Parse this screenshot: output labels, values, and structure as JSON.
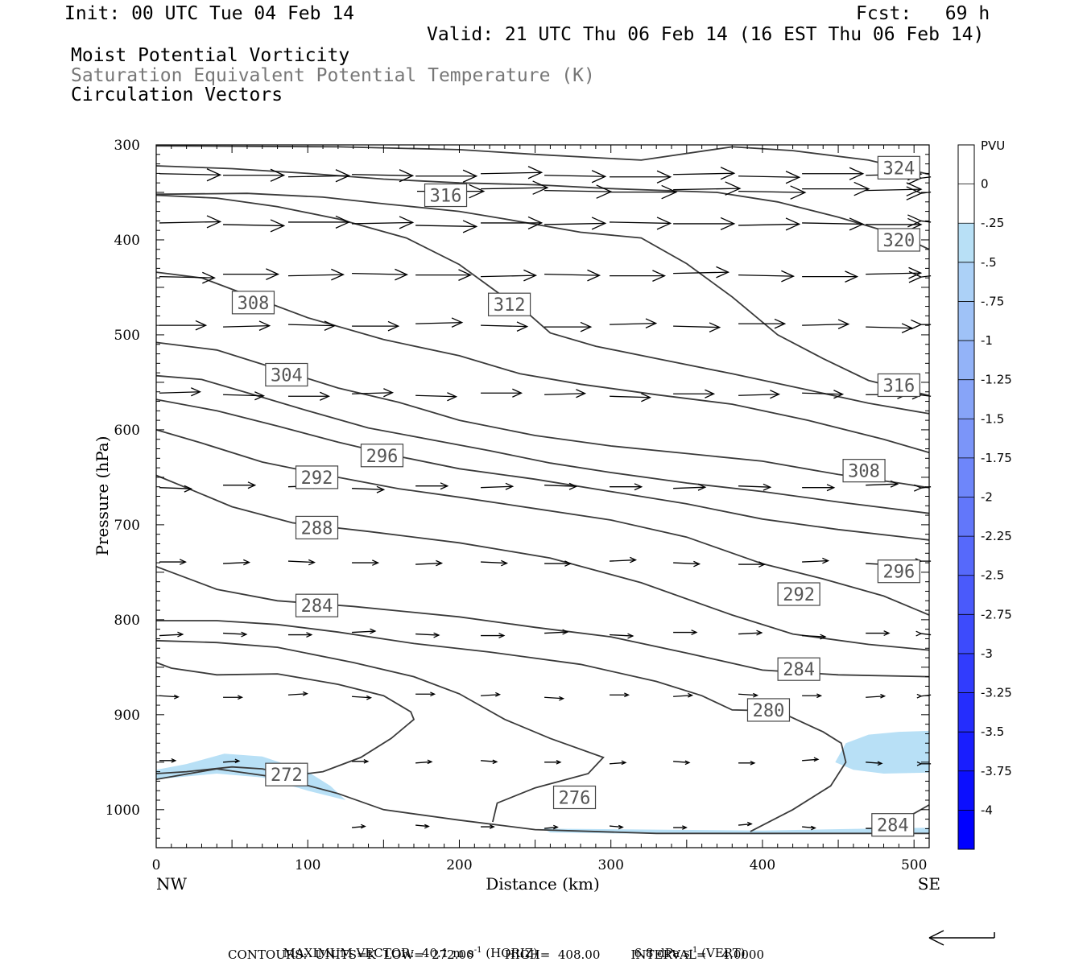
{
  "header": {
    "init": "Init: 00 UTC Tue 04 Feb 14",
    "fcst": "Fcst:   69 h",
    "valid": "Valid: 21 UTC Thu 06 Feb 14 (16 EST Thu 06 Feb 14)",
    "title1": "Moist Potential Vorticity",
    "title2": "Saturation Equivalent Potential Temperature (K)",
    "title3": "Circulation Vectors"
  },
  "chart_data": {
    "type": "cross-section",
    "xlabel": "Distance (km)",
    "ylabel": "Pressure (hPa)",
    "xlim": [
      0,
      510
    ],
    "ylim": [
      1040,
      300
    ],
    "x_ticks": [
      "0",
      "100",
      "200",
      "300",
      "400",
      "500"
    ],
    "y_ticks": [
      "300",
      "400",
      "500",
      "600",
      "700",
      "800",
      "900",
      "1000"
    ],
    "x_end_labels": {
      "left": "NW",
      "right": "SE"
    },
    "contour_labels": [
      {
        "text": "324",
        "x": 490,
        "p": 324
      },
      {
        "text": "316",
        "x": 191,
        "p": 353
      },
      {
        "text": "320",
        "x": 490,
        "p": 400
      },
      {
        "text": "308",
        "x": 64,
        "p": 466
      },
      {
        "text": "312",
        "x": 233,
        "p": 468
      },
      {
        "text": "316",
        "x": 490,
        "p": 553
      },
      {
        "text": "304",
        "x": 86,
        "p": 542
      },
      {
        "text": "296",
        "x": 149,
        "p": 627
      },
      {
        "text": "308",
        "x": 467,
        "p": 643
      },
      {
        "text": "292",
        "x": 106,
        "p": 650
      },
      {
        "text": "288",
        "x": 106,
        "p": 703
      },
      {
        "text": "296",
        "x": 490,
        "p": 749
      },
      {
        "text": "292",
        "x": 424,
        "p": 773
      },
      {
        "text": "284",
        "x": 106,
        "p": 785
      },
      {
        "text": "284",
        "x": 424,
        "p": 852
      },
      {
        "text": "280",
        "x": 404,
        "p": 895
      },
      {
        "text": "272",
        "x": 86,
        "p": 963
      },
      {
        "text": "276",
        "x": 276,
        "p": 987
      },
      {
        "text": "284",
        "x": 486,
        "p": 1016
      }
    ],
    "colorbar": {
      "units": "PVU",
      "labels": [
        "0",
        "-.25",
        "-.5",
        "-.75",
        "-1",
        "-1.25",
        "-1.5",
        "-1.75",
        "-2",
        "-2.25",
        "-2.5",
        "-2.75",
        "-3",
        "-3.25",
        "-3.5",
        "-3.75",
        "-4"
      ]
    }
  },
  "footer": {
    "max_vector": "MAXIMUM VECTOR:  40.1 m s",
    "max_vector_sup": "-1",
    "horiz": " (HORIZ)",
    "vert_val": "6.8 dPa s",
    "vert_sup": "-1",
    "vert_tail": " (VERT)",
    "contours": "CONTOURS:  UNITS=K  LOW=  272.00        HIGH=  408.00        INTERVAL=    4.0000"
  }
}
